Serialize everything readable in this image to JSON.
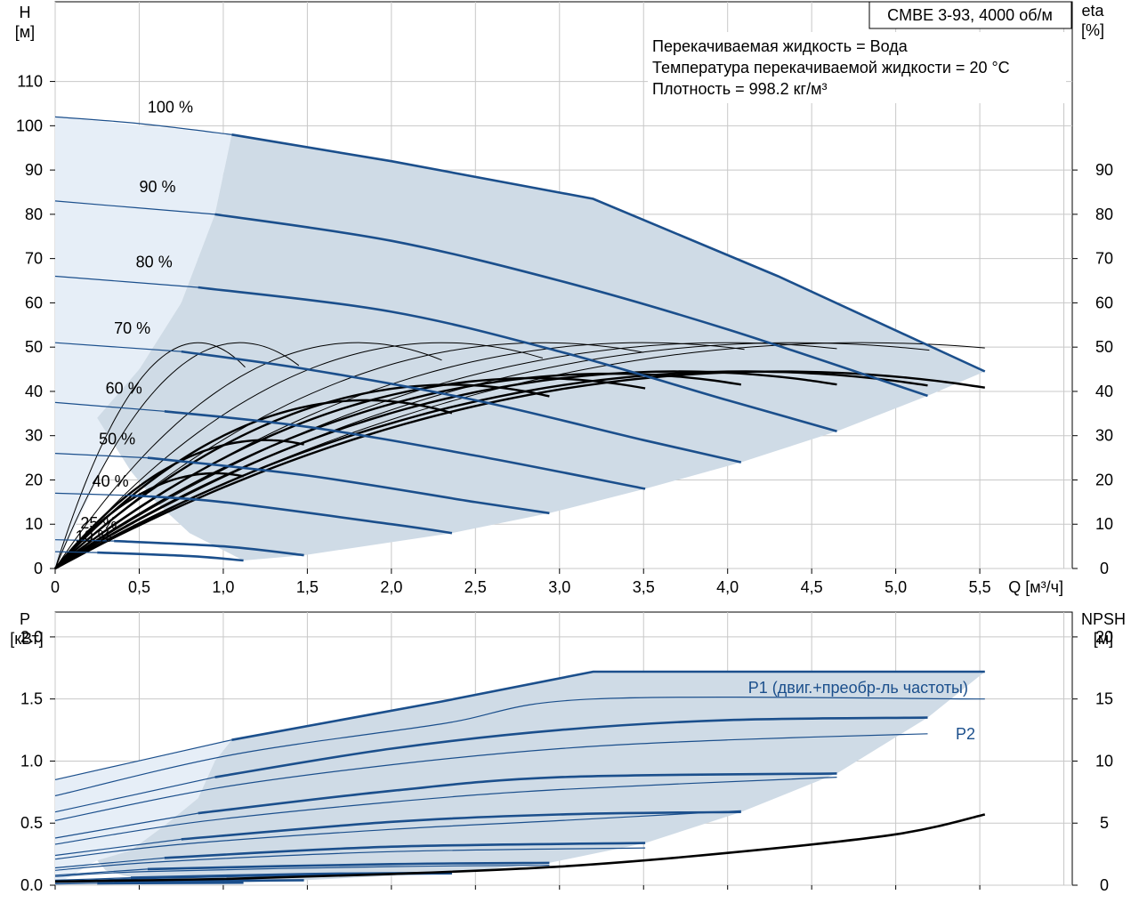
{
  "meta": {
    "pump_title": "CMBE 3-93, 4000 об/м",
    "fluid_lines": [
      "Перекачиваемая жидкость = Вода",
      "Температура перекачиваемой жидкости = 20 °C",
      "Плотность = 998.2 кг/м³"
    ]
  },
  "colors": {
    "curve_blue": "#1b4f8c",
    "band_fill": "#cfdbe6",
    "band_light": "#e6eef7",
    "grid": "#c8c8c8",
    "efficiency": "#000000"
  },
  "chart_data": [
    {
      "type": "line",
      "name": "head",
      "xlabel": "Q [м³/ч]",
      "ylabel_left": [
        "H",
        "[м]"
      ],
      "ylabel_right": [
        "eta",
        "[%]"
      ],
      "xlim": [
        0,
        6.05
      ],
      "ylim": [
        0,
        128
      ],
      "x_ticks": [
        0,
        0.5,
        1.0,
        1.5,
        2.0,
        2.5,
        3.0,
        3.5,
        4.0,
        4.5,
        5.0,
        5.5
      ],
      "x_tick_labels": [
        "0",
        "0,5",
        "1,0",
        "1,5",
        "2,0",
        "2,5",
        "3,0",
        "3,5",
        "4,0",
        "4,5",
        "5,0",
        "5,5"
      ],
      "y_left_ticks": [
        0,
        10,
        20,
        30,
        40,
        50,
        60,
        70,
        80,
        90,
        100,
        110
      ],
      "y_right_ticks": [
        0,
        10,
        20,
        30,
        40,
        50,
        60,
        70,
        80,
        90
      ],
      "grid": true,
      "speed_labels": [
        {
          "text": "100 %",
          "x": 0.55,
          "y": 103
        },
        {
          "text": "90 %",
          "x": 0.5,
          "y": 85
        },
        {
          "text": "80 %",
          "x": 0.48,
          "y": 68
        },
        {
          "text": "70 %",
          "x": 0.35,
          "y": 53
        },
        {
          "text": "60 %",
          "x": 0.3,
          "y": 39.5
        },
        {
          "text": "50 %",
          "x": 0.26,
          "y": 28
        },
        {
          "text": "40 %",
          "x": 0.22,
          "y": 18.5
        },
        {
          "text": "25 %",
          "x": 0.15,
          "y": 9
        },
        {
          "text": "10 %",
          "x": 0.12,
          "y": 6
        }
      ],
      "head_curves": [
        {
          "speed": "100 %",
          "bold_from": 1.05,
          "x": [
            0,
            0.5,
            1.05,
            2.0,
            3.2,
            4.3,
            5.53
          ],
          "y": [
            102,
            100.5,
            98,
            92,
            83.5,
            66,
            44.5
          ]
        },
        {
          "speed": "90 %",
          "bold_from": 0.95,
          "x": [
            0,
            0.95,
            2.0,
            3.0,
            4.0,
            5.19
          ],
          "y": [
            83,
            80,
            74,
            65,
            54,
            39
          ]
        },
        {
          "speed": "80 %",
          "bold_from": 0.85,
          "x": [
            0,
            0.85,
            2.0,
            3.0,
            4.0,
            4.65
          ],
          "y": [
            66,
            63.5,
            58,
            49,
            38,
            31
          ]
        },
        {
          "speed": "70 %",
          "bold_from": 0.75,
          "x": [
            0,
            0.75,
            1.5,
            2.5,
            3.5,
            4.08
          ],
          "y": [
            51,
            49,
            45,
            38,
            29,
            24
          ]
        },
        {
          "speed": "60 %",
          "bold_from": 0.65,
          "x": [
            0,
            0.65,
            1.5,
            2.5,
            3.51
          ],
          "y": [
            37.5,
            35.5,
            32,
            25.5,
            18
          ]
        },
        {
          "speed": "50 %",
          "bold_from": 0.55,
          "x": [
            0,
            0.55,
            1.5,
            2.5,
            2.94
          ],
          "y": [
            26,
            25,
            21,
            15,
            12.5
          ]
        },
        {
          "speed": "40 %",
          "bold_from": 0.45,
          "x": [
            0,
            0.45,
            1.0,
            2.0,
            2.36
          ],
          "y": [
            17,
            16.5,
            15,
            10,
            8
          ]
        },
        {
          "speed": "25 %",
          "bold_from": 0.35,
          "x": [
            0,
            0.35,
            1.0,
            1.48
          ],
          "y": [
            6.5,
            6.2,
            5,
            3
          ]
        },
        {
          "speed": "10 %",
          "bold_from": 0.25,
          "x": [
            0,
            0.25,
            0.8,
            1.12
          ],
          "y": [
            3.8,
            3.6,
            2.8,
            1.8
          ]
        }
      ],
      "operating_range": {
        "x": [
          1.05,
          2.0,
          3.2,
          4.3,
          5.53,
          5.19,
          4.65,
          4.08,
          3.51,
          2.94,
          2.36,
          1.48,
          1.12,
          0.8,
          0.6,
          0.45,
          0.35,
          0.25,
          0.5,
          0.75,
          0.95
        ],
        "y": [
          98,
          92,
          83.5,
          66,
          44.5,
          39,
          31,
          24,
          18,
          12.5,
          8,
          3,
          1.8,
          8,
          15,
          22,
          28,
          34,
          45,
          60,
          80
        ]
      },
      "eta_curves": [
        {
          "qmax": 0.85,
          "eta": 51,
          "end": 1.13
        },
        {
          "qmax": 1.1,
          "eta": 51,
          "end": 1.45
        },
        {
          "qmax": 1.8,
          "eta": 51,
          "end": 2.3
        },
        {
          "qmax": 2.3,
          "eta": 51,
          "end": 2.9
        },
        {
          "qmax": 2.9,
          "eta": 51,
          "end": 3.5
        },
        {
          "qmax": 3.5,
          "eta": 51,
          "end": 4.1
        },
        {
          "qmax": 4.0,
          "eta": 51,
          "end": 4.65
        },
        {
          "qmax": 4.4,
          "eta": 51,
          "end": 5.2
        },
        {
          "qmax": 4.8,
          "eta": 51,
          "end": 5.53
        }
      ],
      "eta_bold_curves": [
        {
          "qmax": 0.95,
          "eta": 21.5,
          "end": 1.12
        },
        {
          "qmax": 1.25,
          "eta": 29,
          "end": 1.48
        },
        {
          "qmax": 1.85,
          "eta": 38,
          "end": 2.36
        },
        {
          "qmax": 2.35,
          "eta": 41.5,
          "end": 2.94
        },
        {
          "qmax": 2.85,
          "eta": 43,
          "end": 3.51
        },
        {
          "qmax": 3.3,
          "eta": 44,
          "end": 4.08
        },
        {
          "qmax": 3.7,
          "eta": 44.5,
          "end": 4.65
        },
        {
          "qmax": 4.1,
          "eta": 44.5,
          "end": 5.19
        },
        {
          "qmax": 4.3,
          "eta": 44.5,
          "end": 5.53
        }
      ]
    },
    {
      "type": "line",
      "name": "power",
      "xlim": [
        0,
        6.05
      ],
      "ylim": [
        0,
        2.2
      ],
      "ylabel_left": [
        "P",
        "[кВт]"
      ],
      "ylabel_right": [
        "NPSH",
        "[м]"
      ],
      "y_left_ticks": [
        0.0,
        0.5,
        1.0,
        1.5,
        2.0
      ],
      "y_left_tick_labels": [
        "0.0",
        "0.5",
        "1.0",
        "1.5",
        "2.0"
      ],
      "y_right_ticks": [
        0,
        5,
        10,
        15,
        20
      ],
      "x_ticks": [
        0,
        0.5,
        1.0,
        1.5,
        2.0,
        2.5,
        3.0,
        3.5,
        4.0,
        4.5,
        5.0,
        5.5
      ],
      "grid": true,
      "legend_labels": {
        "p1": "P1 (двиг.+преобр-ль частоты)",
        "p2": "P2"
      },
      "p1_curves": [
        {
          "x": [
            0,
            1.05,
            2.3,
            3.2,
            5.53
          ],
          "y": [
            0.85,
            1.17,
            1.48,
            1.72,
            1.72
          ]
        },
        {
          "x": [
            0,
            0.95,
            2.0,
            3.0,
            4.0,
            5.19
          ],
          "y": [
            0.59,
            0.87,
            1.1,
            1.25,
            1.33,
            1.35
          ]
        },
        {
          "x": [
            0,
            0.85,
            2.0,
            3.0,
            4.65
          ],
          "y": [
            0.38,
            0.58,
            0.76,
            0.87,
            0.9
          ]
        },
        {
          "x": [
            0,
            0.75,
            2.0,
            3.0,
            4.08
          ],
          "y": [
            0.24,
            0.37,
            0.51,
            0.57,
            0.59
          ]
        },
        {
          "x": [
            0,
            0.65,
            2.0,
            3.51
          ],
          "y": [
            0.14,
            0.22,
            0.31,
            0.34
          ]
        },
        {
          "x": [
            0,
            0.55,
            2.0,
            2.94
          ],
          "y": [
            0.08,
            0.13,
            0.17,
            0.18
          ]
        },
        {
          "x": [
            0,
            0.45,
            1.5,
            2.36
          ],
          "y": [
            0.04,
            0.06,
            0.09,
            0.1
          ]
        },
        {
          "x": [
            0,
            0.35,
            1.48
          ],
          "y": [
            0.02,
            0.03,
            0.04
          ]
        },
        {
          "x": [
            0,
            0.25,
            1.12
          ],
          "y": [
            0.01,
            0.015,
            0.02
          ]
        }
      ],
      "p2_curves": [
        {
          "x": [
            0,
            1.05,
            2.3,
            3.2,
            5.53
          ],
          "y": [
            0.72,
            1.05,
            1.3,
            1.5,
            1.5
          ]
        },
        {
          "x": [
            0,
            0.95,
            2.0,
            3.0,
            4.0,
            5.19
          ],
          "y": [
            0.52,
            0.78,
            0.97,
            1.1,
            1.17,
            1.22
          ]
        },
        {
          "x": [
            0,
            0.85,
            2.0,
            3.0,
            4.65
          ],
          "y": [
            0.33,
            0.51,
            0.67,
            0.77,
            0.87
          ]
        },
        {
          "x": [
            0,
            0.75,
            2.0,
            3.0,
            4.08
          ],
          "y": [
            0.21,
            0.33,
            0.45,
            0.52,
            0.6
          ]
        },
        {
          "x": [
            0,
            0.65,
            2.0,
            3.51
          ],
          "y": [
            0.12,
            0.19,
            0.27,
            0.3
          ]
        },
        {
          "x": [
            0,
            0.55,
            2.0,
            2.94
          ],
          "y": [
            0.07,
            0.11,
            0.15,
            0.16
          ]
        },
        {
          "x": [
            0,
            0.45,
            1.5,
            2.36
          ],
          "y": [
            0.03,
            0.05,
            0.08,
            0.09
          ]
        }
      ],
      "npsh": {
        "x": [
          0,
          1.0,
          2.0,
          3.0,
          4.0,
          5.0,
          5.53
        ],
        "y": [
          0.3,
          0.5,
          0.9,
          1.5,
          2.6,
          4.1,
          5.7
        ]
      },
      "operating_range": {
        "x": [
          1.05,
          2.3,
          3.2,
          5.53,
          5.19,
          4.65,
          4.08,
          3.51,
          2.94,
          2.36,
          1.48,
          1.12,
          0.8,
          0.6,
          0.5,
          0.4,
          0.3,
          0.25,
          0.45,
          0.65,
          0.85,
          0.95
        ],
        "y": [
          1.17,
          1.48,
          1.72,
          1.72,
          1.35,
          0.9,
          0.59,
          0.34,
          0.18,
          0.1,
          0.04,
          0.02,
          0.02,
          0.03,
          0.05,
          0.08,
          0.12,
          0.2,
          0.28,
          0.48,
          0.7,
          1.0
        ]
      }
    }
  ]
}
